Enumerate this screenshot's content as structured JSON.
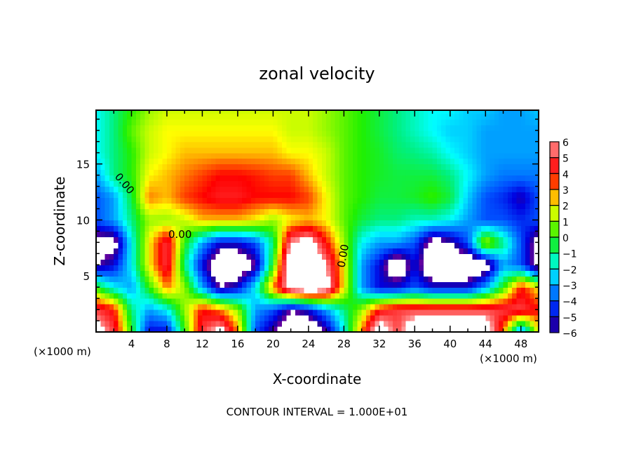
{
  "chart_data": {
    "type": "heatmap",
    "title": "zonal velocity",
    "xlabel": "X-coordinate",
    "ylabel": "Z-coordinate",
    "x_unit_label": "(×1000 m)",
    "y_unit_label": "(×1000 m)",
    "footer": "CONTOUR INTERVAL = 1.000E+01",
    "xlim": [
      0,
      50
    ],
    "ylim": [
      0,
      19.8
    ],
    "x_ticks": [
      4,
      8,
      12,
      16,
      20,
      24,
      28,
      32,
      36,
      40,
      44,
      48
    ],
    "y_ticks": [
      5,
      10,
      15
    ],
    "colorbar": {
      "min": -6,
      "max": 6,
      "ticks": [
        6,
        5,
        4,
        3,
        2,
        1,
        0,
        -1,
        -2,
        -3,
        -4,
        -5,
        -6
      ],
      "out_of_range": "#ffffff"
    },
    "contour_labels": [
      "0.00",
      "0.00",
      "0.00"
    ],
    "grid": {
      "x": [
        0,
        2,
        4,
        6,
        8,
        10,
        12,
        14,
        16,
        18,
        20,
        22,
        24,
        26,
        28,
        30,
        32,
        34,
        36,
        38,
        40,
        42,
        44,
        46,
        48,
        50
      ],
      "z": [
        20,
        18,
        16,
        14,
        12,
        10,
        8,
        6,
        4,
        2,
        0
      ],
      "values": [
        [
          -2,
          -1,
          0,
          1,
          1.5,
          1.5,
          1.5,
          1.5,
          1.5,
          1.5,
          1.5,
          1.5,
          1.5,
          1,
          0.5,
          0,
          -0.5,
          -1,
          -1.5,
          -2,
          -2,
          -2.5,
          -2.5,
          -3,
          -3,
          -2.5
        ],
        [
          -2,
          -1,
          0.5,
          1.5,
          2,
          2,
          2,
          2,
          2,
          2,
          2,
          1.5,
          1.5,
          1,
          0.5,
          0,
          -0.5,
          -1,
          -1.5,
          -2,
          -2.5,
          -2.5,
          -3,
          -3,
          -3,
          -3
        ],
        [
          -2,
          -1,
          0,
          1.5,
          2,
          2.5,
          2.5,
          2.5,
          2.5,
          2.5,
          2.5,
          2,
          2,
          1.5,
          0.5,
          0,
          -0.3,
          -0.8,
          -1,
          -1.3,
          -2,
          -2.5,
          -3,
          -3,
          -3,
          -3
        ],
        [
          -3,
          -1,
          0,
          2,
          2.5,
          3,
          3.5,
          4,
          4,
          3.8,
          3.5,
          3.5,
          2.5,
          1.5,
          0.5,
          0,
          -0.3,
          -0.5,
          -0.5,
          -0.5,
          -1,
          -2,
          -3,
          -3.5,
          -3.5,
          -3.5
        ],
        [
          -4,
          -3,
          -0.5,
          3,
          2.5,
          3.5,
          4,
          4.5,
          4.5,
          4,
          4,
          4,
          3.5,
          2,
          0.5,
          0,
          -0.5,
          -0.5,
          -0.3,
          0.2,
          -0.5,
          -2.5,
          -4,
          -4.5,
          -5.5,
          -4
        ],
        [
          -4,
          -3,
          -1,
          1,
          1,
          1.5,
          2.5,
          2.5,
          2.5,
          2,
          1,
          2,
          2.5,
          2,
          0.5,
          -0.5,
          -1,
          -1,
          -1.5,
          -1.5,
          -2,
          -3,
          -4,
          -4,
          -4.5,
          -4
        ],
        [
          -7,
          -7,
          -2,
          2,
          5,
          0,
          -3,
          -5,
          -5,
          -4,
          -1,
          6,
          7,
          4,
          1,
          -2,
          -3,
          -3,
          -4,
          -7,
          -6,
          -4,
          1.5,
          -1,
          -4,
          -7
        ],
        [
          -6,
          -5,
          -2,
          2,
          5,
          -1,
          -5,
          -8,
          -8,
          -6,
          0,
          8,
          8,
          6,
          2,
          -3,
          -5,
          -8,
          -5,
          -8,
          -8,
          -8,
          -7,
          -3,
          -4,
          -7
        ],
        [
          0,
          -2,
          -3,
          0,
          3,
          1,
          -3,
          -6,
          -5,
          -2,
          3,
          7,
          8,
          7,
          2,
          -3,
          -5,
          -5,
          -4,
          -5,
          -5,
          -5,
          -3,
          0,
          4,
          2
        ],
        [
          5,
          4,
          -1,
          -3,
          -2,
          1,
          4,
          3,
          1,
          -3,
          -4,
          -6,
          -5,
          -3,
          -1,
          1,
          4,
          5,
          5,
          5,
          5,
          5,
          5,
          5,
          5,
          4
        ],
        [
          7,
          5,
          0,
          -5,
          -5,
          0,
          5,
          7,
          3,
          -4,
          -6,
          -8,
          -8,
          -6,
          -2,
          3,
          8,
          5,
          8,
          8,
          8,
          8,
          8,
          3,
          -4,
          2
        ]
      ]
    }
  }
}
